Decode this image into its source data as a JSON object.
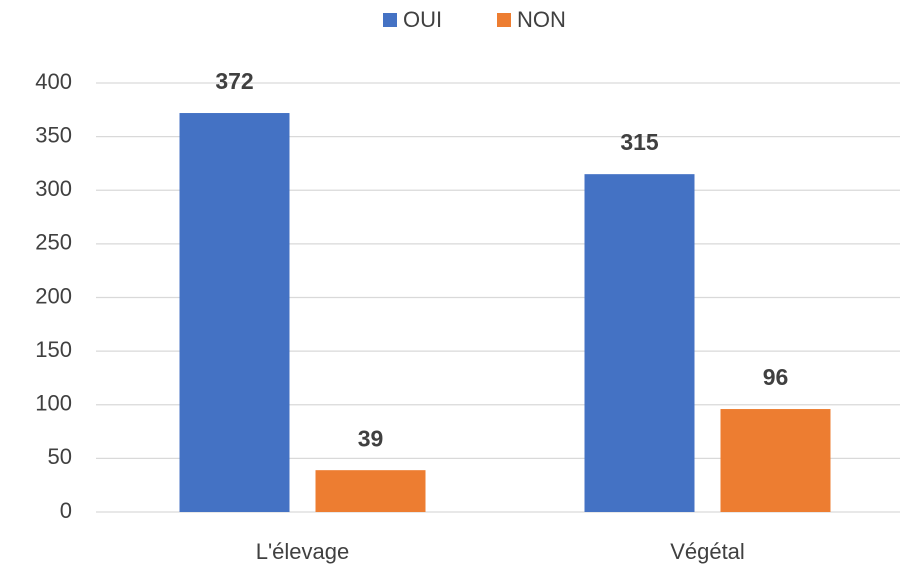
{
  "chart_data": {
    "type": "bar",
    "categories": [
      "L'élevage",
      "Végétal"
    ],
    "series": [
      {
        "name": "OUI",
        "color": "#4472c4",
        "values": [
          372,
          315
        ]
      },
      {
        "name": "NON",
        "color": "#ed7d31",
        "values": [
          39,
          96
        ]
      }
    ],
    "ylim": [
      0,
      400
    ],
    "yticks": [
      0,
      50,
      100,
      150,
      200,
      250,
      300,
      350,
      400
    ],
    "grid": true,
    "legend": "top",
    "data_labels": true
  }
}
